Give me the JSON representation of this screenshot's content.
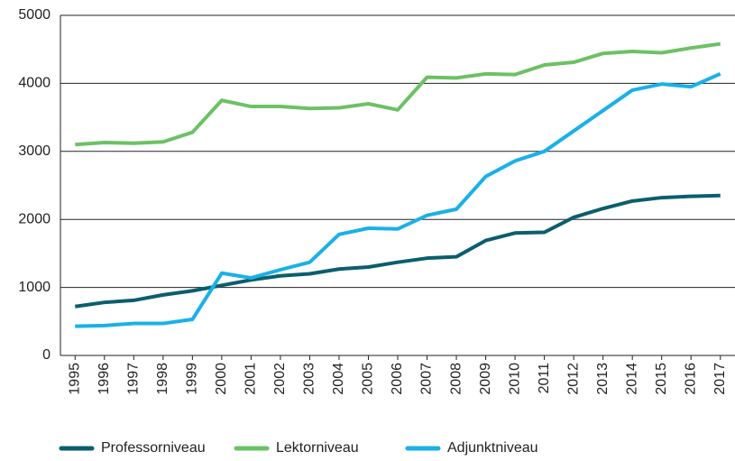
{
  "chart_data": {
    "type": "line",
    "categories": [
      "1995",
      "1996",
      "1997",
      "1998",
      "1999",
      "2000",
      "2001",
      "2002",
      "2003",
      "2004",
      "2005",
      "2006",
      "2007",
      "2008",
      "2009",
      "2010",
      "2011",
      "2012",
      "2013",
      "2014",
      "2015",
      "2016",
      "2017"
    ],
    "series": [
      {
        "name": "Professorniveau",
        "color": "#0b5e6e",
        "values": [
          720,
          780,
          810,
          890,
          950,
          1030,
          1110,
          1170,
          1200,
          1270,
          1300,
          1370,
          1430,
          1450,
          1690,
          1800,
          1810,
          2030,
          2160,
          2270,
          2320,
          2340,
          2350
        ]
      },
      {
        "name": "Lektorniveau",
        "color": "#6cc164",
        "values": [
          3100,
          3130,
          3120,
          3140,
          3280,
          3750,
          3660,
          3660,
          3630,
          3640,
          3700,
          3610,
          4090,
          4080,
          4140,
          4130,
          4270,
          4310,
          4440,
          4470,
          4450,
          4520,
          4580
        ]
      },
      {
        "name": "Adjunktniveau",
        "color": "#1ab0e8",
        "values": [
          430,
          440,
          470,
          470,
          530,
          1210,
          1140,
          1260,
          1370,
          1780,
          1870,
          1860,
          2060,
          2150,
          2630,
          2860,
          3000,
          3300,
          3600,
          3900,
          3990,
          3950,
          4140
        ]
      }
    ],
    "ylim": [
      0,
      5000
    ],
    "yticks": [
      0,
      1000,
      2000,
      3000,
      4000,
      5000
    ],
    "grid": true,
    "legend": "bottom"
  }
}
